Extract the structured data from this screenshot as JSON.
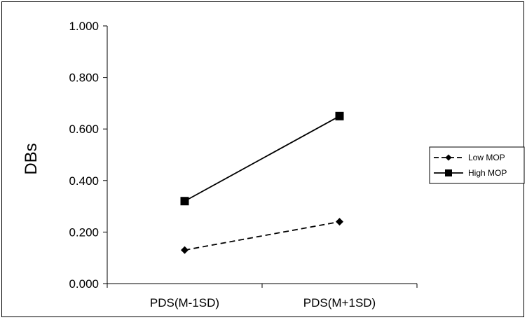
{
  "chart_data": {
    "type": "line",
    "categories": [
      "PDS(M-1SD)",
      "PDS(M+1SD)"
    ],
    "ylabel": "DBs",
    "xlabel": "",
    "ylim": [
      0,
      1
    ],
    "yticks": [
      "0.000",
      "0.200",
      "0.400",
      "0.600",
      "0.800",
      "1.000"
    ],
    "grid": false,
    "legend_position": "right",
    "series": [
      {
        "name": "Low MOP",
        "values": [
          0.13,
          0.24
        ],
        "line_style": "dashed",
        "marker": "diamond",
        "color": "#000000"
      },
      {
        "name": "High MOP",
        "values": [
          0.32,
          0.65
        ],
        "line_style": "solid",
        "marker": "square",
        "color": "#000000"
      }
    ]
  }
}
